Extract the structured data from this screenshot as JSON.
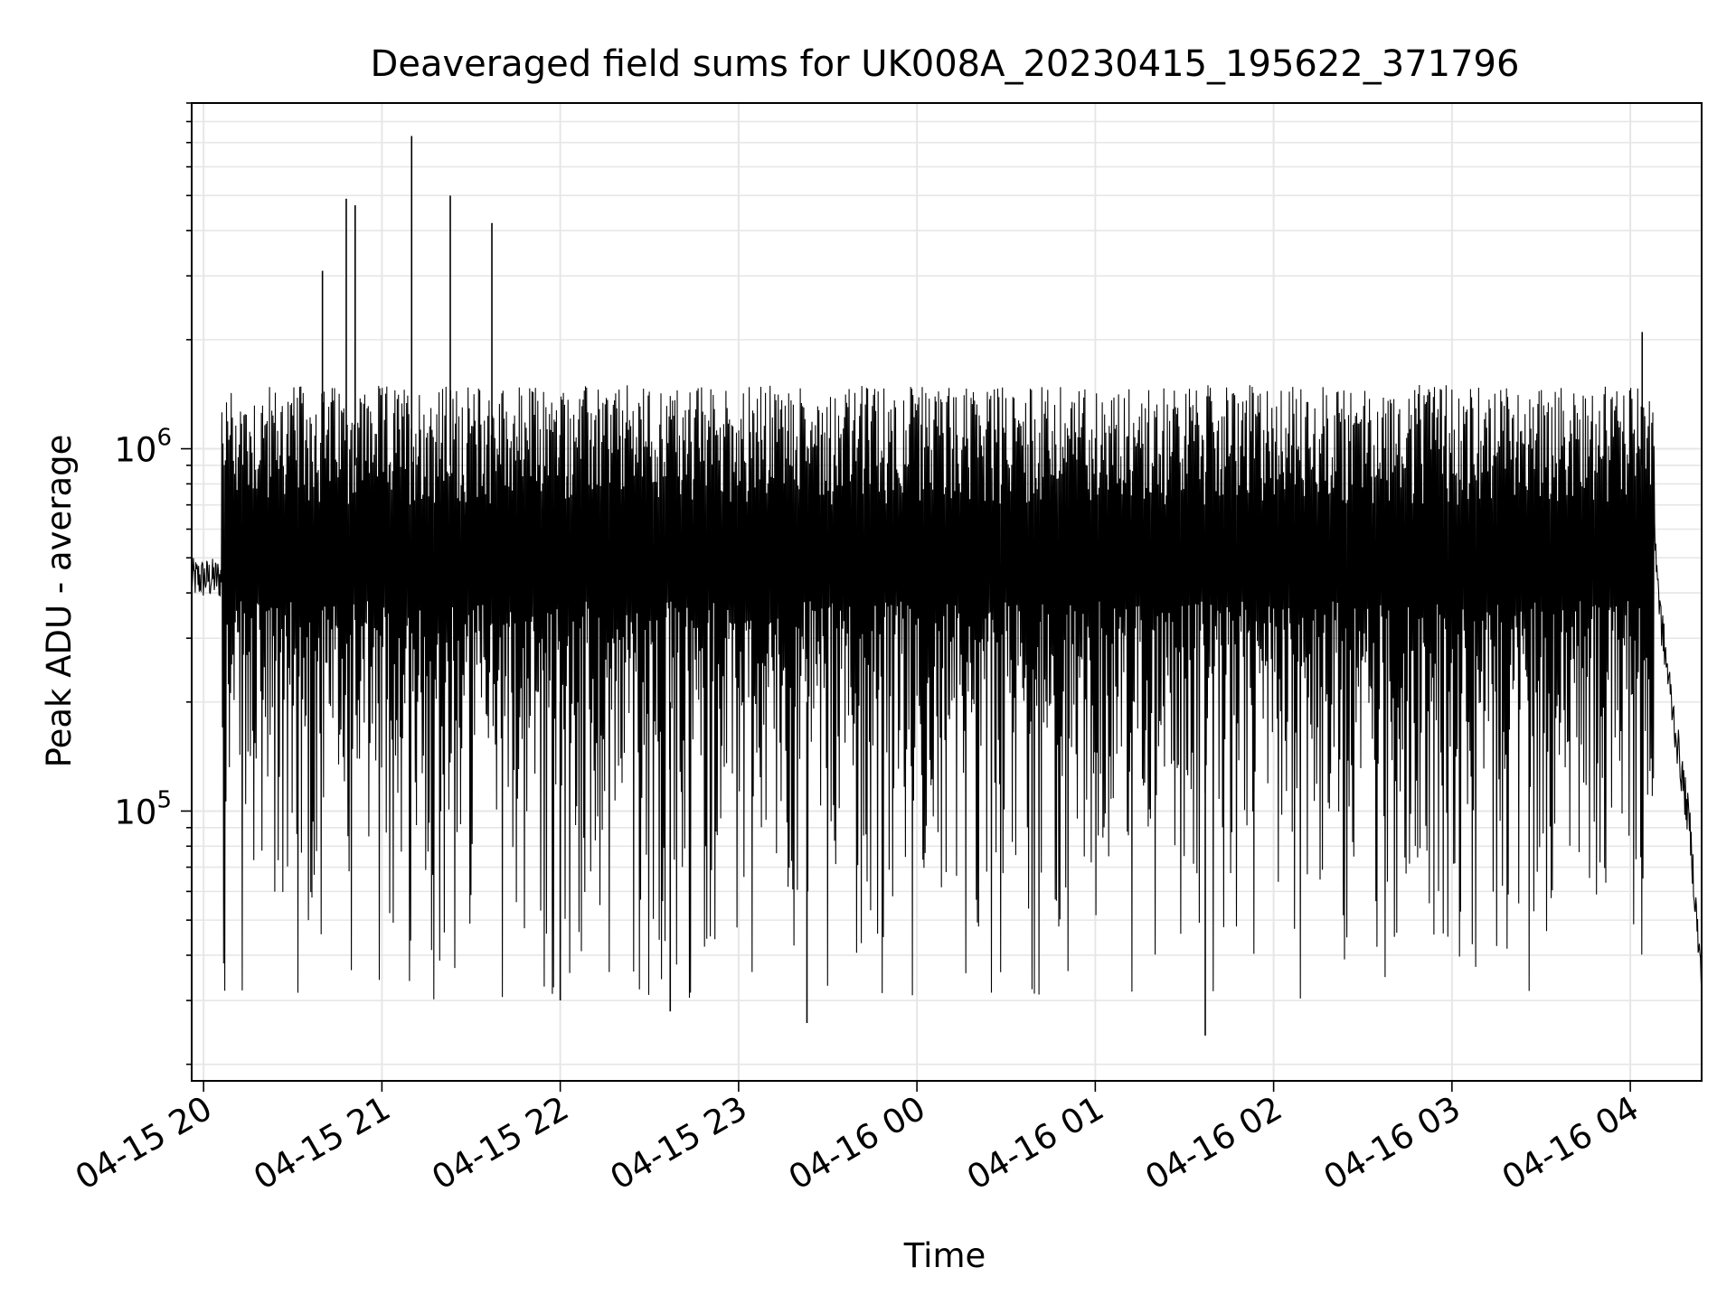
{
  "chart_data": {
    "type": "line",
    "title": "Deaveraged field sums for UK008A_20230415_195622_371796",
    "xlabel": "Time",
    "ylabel": "Peak ADU - average",
    "yscale": "log",
    "x_start": "04-15 19:56",
    "x_end": "04-16 04:24",
    "xlim": [
      "04-15 19:56",
      "04-16 04:24"
    ],
    "ylim": [
      18000,
      9000000
    ],
    "grid": true,
    "line_color": "#000000",
    "grid_color": "#e6e6e6",
    "x_ticks": [
      "04-15 20",
      "04-15 21",
      "04-15 22",
      "04-15 23",
      "04-16 00",
      "04-16 01",
      "04-16 02",
      "04-16 03",
      "04-16 04"
    ],
    "y_ticks": [
      {
        "base": "10",
        "exp": "5",
        "value": 100000
      },
      {
        "base": "10",
        "exp": "6",
        "value": 1000000
      }
    ],
    "series": [
      {
        "values_summary": "dense oscillating signal sampled roughly every few seconds",
        "points": [
          {
            "t": "04-15 19:56",
            "y": 430000
          },
          {
            "t": "04-15 19:59",
            "y": 460000
          },
          {
            "t": "04-15 20:02",
            "y": 400000
          },
          {
            "t": "04-15 20:05",
            "y": 420000
          },
          {
            "t": "04-15 20:10",
            "y": 800000
          },
          {
            "t": "04-15 20:20",
            "y": 1400000
          },
          {
            "t": "04-15 20:30",
            "y": 900000
          },
          {
            "t": "04-15 20:40",
            "y": 3100000
          },
          {
            "t": "04-15 20:48",
            "y": 4900000
          },
          {
            "t": "04-15 20:51",
            "y": 4700000
          },
          {
            "t": "04-15 21:10",
            "y": 7300000
          },
          {
            "t": "04-15 21:23",
            "y": 5000000
          },
          {
            "t": "04-15 21:37",
            "y": 4200000
          },
          {
            "t": "04-15 22:00",
            "y": 30000
          },
          {
            "t": "04-15 22:37",
            "y": 28000
          },
          {
            "t": "04-15 23:23",
            "y": 26000
          },
          {
            "t": "04-16 01:37",
            "y": 24000
          },
          {
            "t": "04-16 03:30",
            "y": 1500000
          },
          {
            "t": "04-16 04:04",
            "y": 2100000
          },
          {
            "t": "04-16 04:10",
            "y": 350000
          },
          {
            "t": "04-16 04:15",
            "y": 170000
          },
          {
            "t": "04-16 04:20",
            "y": 90000
          },
          {
            "t": "04-16 04:24",
            "y": 33000
          }
        ]
      }
    ]
  }
}
